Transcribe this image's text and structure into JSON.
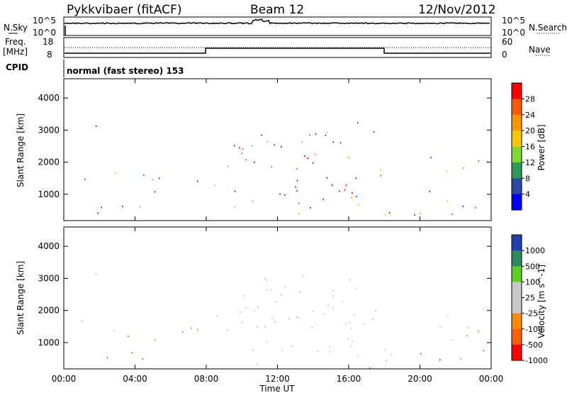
{
  "header": {
    "title": "Pykkvibaer (fitACF)",
    "beam": "Beam 12",
    "date": "12/Nov/2012"
  },
  "sky_panel": {
    "left_label": "N.Sky",
    "right_label": "N.Search",
    "left_ticks": [
      "10^5",
      "10^0"
    ],
    "right_ticks": [
      "10^5",
      "10^0"
    ]
  },
  "freq_panel": {
    "left_label_1": "Freq.",
    "left_label_2": "[MHz]",
    "right_label": "Nave",
    "left_ticks": [
      "18",
      "8"
    ],
    "right_ticks": [
      "60",
      "0"
    ]
  },
  "cpid": {
    "label": "CPID",
    "text": "normal (fast stereo) 153"
  },
  "chart_data": [
    {
      "type": "heatmap",
      "name": "power",
      "ylabel": "Slant Range [km]",
      "y_ticks": [
        "4000",
        "3000",
        "2000",
        "1000"
      ],
      "ylim": [
        180,
        4600
      ],
      "colorbar_label": "Power [dB]",
      "colorbar_ticks": [
        "28",
        "24",
        "20",
        "16",
        "12",
        "8",
        "4"
      ],
      "colorbar_colors": [
        "#ff0000",
        "#ff5a00",
        "#ff9600",
        "#f7c800",
        "#7fdc2c",
        "#2e9a5a",
        "#2a4aa8",
        "#0000ff"
      ]
    },
    {
      "type": "heatmap",
      "name": "velocity",
      "ylabel": "Slant Range [km]",
      "y_ticks": [
        "4000",
        "3000",
        "2000",
        "1000"
      ],
      "ylim": [
        180,
        4600
      ],
      "colorbar_label": "Velocity [m s^-1]",
      "colorbar_ticks": [
        "1000",
        "500",
        "100",
        "25",
        "-25",
        "-100",
        "-500",
        "-1000"
      ],
      "colorbar_colors": [
        "#1f3fb0",
        "#2e8a5e",
        "#5cd020",
        "#c8c8c8",
        "#c8c8c8",
        "#ff8a00",
        "#ff6000",
        "#ff0000"
      ]
    }
  ],
  "x_axis": {
    "label": "Time UT",
    "ticks": [
      "00:00",
      "04:00",
      "08:00",
      "12:00",
      "16:00",
      "20:00",
      "00:00"
    ]
  }
}
